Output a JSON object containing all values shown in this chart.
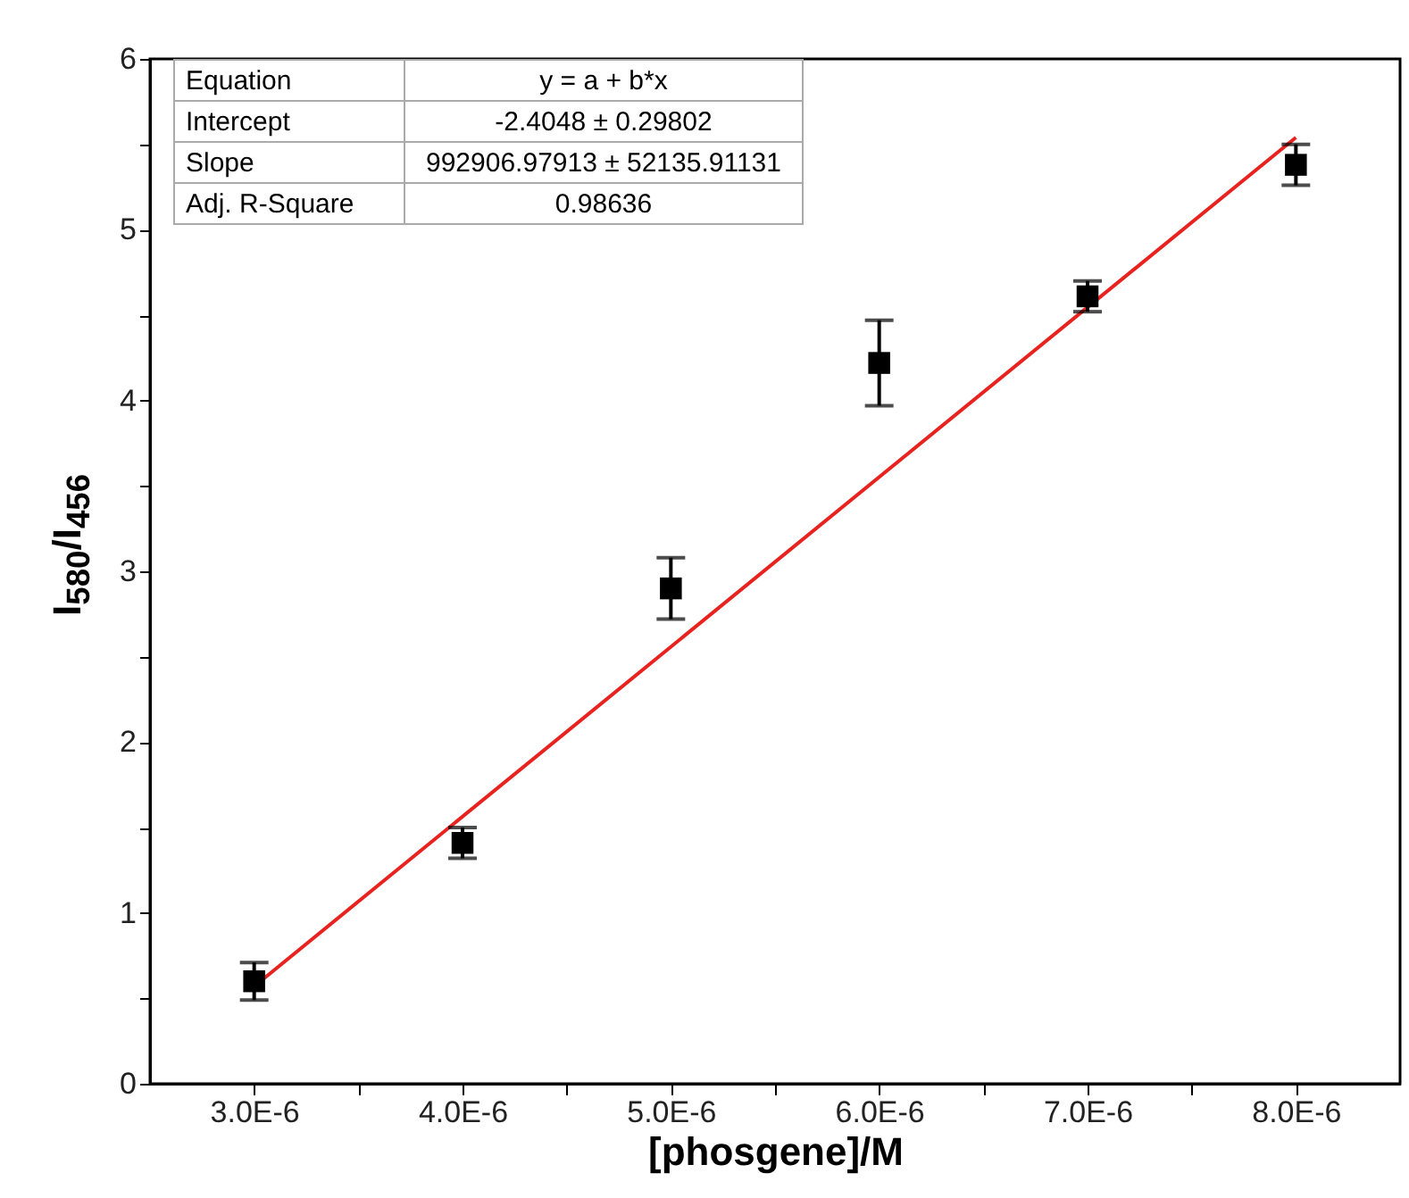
{
  "chart_data": {
    "type": "scatter",
    "xlabel": "[phosgene]/M",
    "ylabel": "I$_{580}$/I$_{456}$",
    "annotations": [
      "Equation",
      "y = a + b*x",
      "Intercept",
      "-2.4048 ± 0.29802",
      "Slope",
      "992906.97913 ± 52135.91131",
      "Adj. R-Square",
      "0.98636"
    ],
    "series": [
      {
        "color": "#000000",
        "marker": "square",
        "x": [
          3e-06,
          4e-06,
          5e-06,
          6e-06,
          7e-06,
          8e-06
        ],
        "values": [
          0.6,
          1.41,
          2.9,
          4.22,
          4.61,
          5.38
        ],
        "errors": [
          0.11,
          0.09,
          0.18,
          0.25,
          0.09,
          0.12
        ]
      },
      {
        "type": "line",
        "color": "#e8231f",
        "x": [
          3e-06,
          8e-06
        ],
        "values": [
          0.57,
          5.54
        ]
      }
    ],
    "xlim": [
      2.5e-06,
      8.5e-06
    ],
    "xticks": [
      {
        "value": 3e-06,
        "label": "3.0E-6"
      },
      {
        "value": 3.5e-06,
        "label": null
      },
      {
        "value": 4e-06,
        "label": "4.0E-6"
      },
      {
        "value": 4.5e-06,
        "label": null
      },
      {
        "value": 5e-06,
        "label": "5.0E-6"
      },
      {
        "value": 5.5e-06,
        "label": null
      },
      {
        "value": 6e-06,
        "label": "6.0E-6"
      },
      {
        "value": 6.5e-06,
        "label": null
      },
      {
        "value": 7e-06,
        "label": "7.0E-6"
      },
      {
        "value": 7.5e-06,
        "label": null
      },
      {
        "value": 8e-06,
        "label": "8.0E-6"
      }
    ],
    "ylim": [
      0,
      6
    ],
    "yticks": [
      0,
      {
        "value": 0.5,
        "label": null
      },
      1,
      {
        "value": 1.5,
        "label": null
      },
      2,
      {
        "value": 2.5,
        "label": null
      },
      3,
      {
        "value": 3.5,
        "label": null
      },
      4,
      {
        "value": 4.5,
        "label": null
      },
      5,
      {
        "value": 5.5,
        "label": null
      },
      6
    ],
    "grid": false,
    "line_style": "solid"
  }
}
